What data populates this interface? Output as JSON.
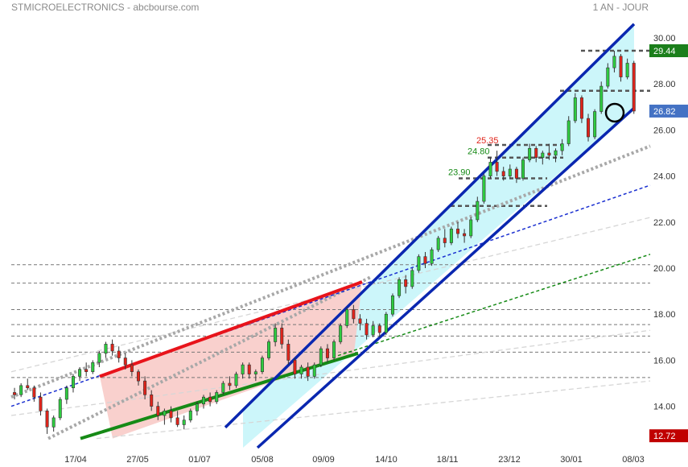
{
  "header": {
    "title": "STMICROELECTRONICS - abcbourse.com",
    "period": "1 AN - JOUR"
  },
  "colors": {
    "candle_up": "#2ecc40",
    "candle_down": "#e0241b",
    "channel": "#0a27b0",
    "channel_fill": "#ccf6fa",
    "wedge_fill": "#f8c8c4",
    "resistance": "#e8141b",
    "support": "#168a16",
    "dashed_blue": "#1a2fd0",
    "dashed_green": "#168a16",
    "price_box_last": "#4472c4",
    "price_box_high": "#1b7f1b",
    "price_box_low": "#c00000"
  },
  "chart_data": {
    "type": "candlestick",
    "x_ticks": [
      "17/04",
      "27/05",
      "01/07",
      "05/08",
      "09/09",
      "14/10",
      "18/11",
      "23/12",
      "30/01",
      "08/03"
    ],
    "y_ticks": [
      30.0,
      28.0,
      26.0,
      24.0,
      22.0,
      20.0,
      18.0,
      16.0,
      14.0
    ],
    "ylim": [
      12.6,
      30.6
    ],
    "price_boxes": [
      {
        "value": "29.44",
        "kind": "high"
      },
      {
        "value": "26.82",
        "kind": "last"
      },
      {
        "value": "12.72",
        "kind": "low"
      }
    ],
    "level_labels": [
      {
        "text": "25.35",
        "color": "#e0241b",
        "value": 25.35
      },
      {
        "text": "24.80",
        "color": "#168a16",
        "value": 24.8
      },
      {
        "text": "23.90",
        "color": "#168a16",
        "value": 23.9
      }
    ],
    "horizontal_levels": [
      29.44,
      27.7,
      25.35,
      24.8,
      23.9,
      22.7,
      20.15,
      19.35,
      18.2,
      17.55,
      17.05,
      16.35,
      15.25
    ],
    "candles": [
      [
        14.6,
        14.8,
        14.3,
        14.5
      ],
      [
        14.5,
        15.0,
        14.4,
        14.9
      ],
      [
        14.9,
        15.2,
        14.7,
        14.8
      ],
      [
        14.8,
        14.9,
        14.2,
        14.4
      ],
      [
        14.4,
        14.6,
        13.6,
        13.8
      ],
      [
        13.8,
        13.9,
        12.8,
        13.1
      ],
      [
        13.1,
        13.6,
        12.9,
        13.5
      ],
      [
        13.5,
        14.4,
        13.4,
        14.3
      ],
      [
        14.3,
        14.9,
        14.1,
        14.8
      ],
      [
        14.8,
        15.4,
        14.6,
        15.3
      ],
      [
        15.3,
        15.7,
        15.1,
        15.6
      ],
      [
        15.6,
        15.9,
        15.3,
        15.5
      ],
      [
        15.5,
        16.0,
        15.4,
        15.9
      ],
      [
        15.9,
        16.4,
        15.7,
        16.3
      ],
      [
        16.3,
        16.8,
        16.1,
        16.7
      ],
      [
        16.7,
        16.9,
        16.2,
        16.4
      ],
      [
        16.4,
        16.6,
        15.9,
        16.1
      ],
      [
        16.1,
        16.3,
        15.6,
        15.8
      ],
      [
        15.8,
        16.0,
        15.3,
        15.5
      ],
      [
        15.5,
        15.6,
        14.9,
        15.1
      ],
      [
        15.1,
        15.3,
        14.3,
        14.5
      ],
      [
        14.5,
        14.7,
        13.8,
        14.0
      ],
      [
        14.0,
        14.2,
        13.4,
        13.6
      ],
      [
        13.6,
        13.9,
        13.2,
        13.8
      ],
      [
        13.8,
        14.0,
        13.3,
        13.5
      ],
      [
        13.5,
        13.8,
        13.1,
        13.2
      ],
      [
        13.2,
        13.6,
        13.0,
        13.4
      ],
      [
        13.4,
        13.9,
        13.3,
        13.8
      ],
      [
        13.8,
        14.2,
        13.6,
        14.1
      ],
      [
        14.1,
        14.5,
        13.9,
        14.4
      ],
      [
        14.4,
        14.6,
        14.0,
        14.2
      ],
      [
        14.2,
        14.7,
        14.1,
        14.6
      ],
      [
        14.6,
        15.1,
        14.5,
        15.0
      ],
      [
        15.0,
        15.3,
        14.7,
        14.9
      ],
      [
        14.9,
        15.5,
        14.8,
        15.4
      ],
      [
        15.4,
        15.9,
        15.2,
        15.8
      ],
      [
        15.8,
        15.9,
        15.2,
        15.4
      ],
      [
        15.4,
        15.6,
        15.1,
        15.5
      ],
      [
        15.5,
        16.2,
        15.4,
        16.1
      ],
      [
        16.1,
        16.9,
        16.0,
        16.8
      ],
      [
        16.8,
        17.6,
        16.6,
        17.4
      ],
      [
        17.4,
        17.6,
        16.5,
        16.7
      ],
      [
        16.7,
        16.9,
        15.8,
        16.0
      ],
      [
        16.0,
        16.1,
        15.2,
        15.4
      ],
      [
        15.4,
        15.8,
        15.2,
        15.7
      ],
      [
        15.7,
        15.9,
        15.1,
        15.3
      ],
      [
        15.3,
        15.9,
        15.2,
        15.8
      ],
      [
        15.8,
        16.6,
        15.7,
        16.5
      ],
      [
        16.5,
        16.7,
        15.9,
        16.1
      ],
      [
        16.1,
        16.9,
        16.0,
        16.8
      ],
      [
        16.8,
        17.6,
        16.7,
        17.5
      ],
      [
        17.5,
        18.3,
        17.4,
        18.2
      ],
      [
        18.2,
        18.4,
        17.6,
        17.8
      ],
      [
        17.8,
        18.0,
        17.3,
        17.6
      ],
      [
        17.6,
        17.8,
        16.9,
        17.1
      ],
      [
        17.1,
        17.7,
        17.0,
        17.5
      ],
      [
        17.5,
        17.6,
        17.0,
        17.2
      ],
      [
        17.2,
        18.1,
        17.1,
        18.0
      ],
      [
        18.0,
        18.9,
        17.9,
        18.8
      ],
      [
        18.8,
        19.6,
        18.7,
        19.5
      ],
      [
        19.5,
        19.7,
        18.9,
        19.2
      ],
      [
        19.2,
        20.0,
        19.1,
        19.9
      ],
      [
        19.9,
        20.6,
        19.8,
        20.5
      ],
      [
        20.5,
        20.7,
        20.0,
        20.2
      ],
      [
        20.2,
        20.9,
        20.1,
        20.8
      ],
      [
        20.8,
        21.4,
        20.7,
        21.3
      ],
      [
        21.3,
        21.7,
        20.9,
        21.1
      ],
      [
        21.1,
        21.8,
        21.0,
        21.7
      ],
      [
        21.7,
        22.0,
        21.3,
        21.5
      ],
      [
        21.5,
        21.7,
        21.1,
        21.4
      ],
      [
        21.4,
        22.2,
        21.3,
        22.1
      ],
      [
        22.1,
        23.1,
        22.0,
        22.9
      ],
      [
        22.9,
        24.1,
        22.8,
        24.0
      ],
      [
        24.0,
        24.8,
        23.9,
        24.6
      ],
      [
        24.6,
        25.1,
        24.0,
        24.2
      ],
      [
        24.2,
        24.4,
        23.8,
        24.0
      ],
      [
        24.0,
        24.5,
        23.9,
        24.3
      ],
      [
        24.3,
        24.4,
        23.7,
        23.9
      ],
      [
        23.9,
        24.8,
        23.8,
        24.7
      ],
      [
        24.7,
        25.4,
        24.6,
        25.2
      ],
      [
        25.2,
        25.3,
        24.6,
        24.8
      ],
      [
        24.8,
        25.1,
        24.5,
        25.0
      ],
      [
        25.0,
        25.4,
        24.7,
        24.9
      ],
      [
        24.9,
        25.2,
        24.6,
        25.1
      ],
      [
        25.1,
        25.6,
        24.9,
        25.4
      ],
      [
        25.4,
        26.6,
        25.3,
        26.4
      ],
      [
        26.4,
        27.6,
        26.3,
        27.4
      ],
      [
        27.4,
        27.5,
        26.3,
        26.5
      ],
      [
        26.5,
        26.7,
        25.5,
        25.7
      ],
      [
        25.7,
        26.9,
        25.6,
        26.8
      ],
      [
        26.8,
        28.1,
        26.7,
        27.9
      ],
      [
        27.9,
        28.9,
        27.8,
        28.7
      ],
      [
        28.7,
        29.44,
        28.5,
        29.2
      ],
      [
        29.2,
        29.3,
        28.1,
        28.3
      ],
      [
        28.3,
        29.1,
        28.2,
        28.9
      ],
      [
        28.9,
        29.0,
        26.7,
        26.82
      ]
    ]
  }
}
